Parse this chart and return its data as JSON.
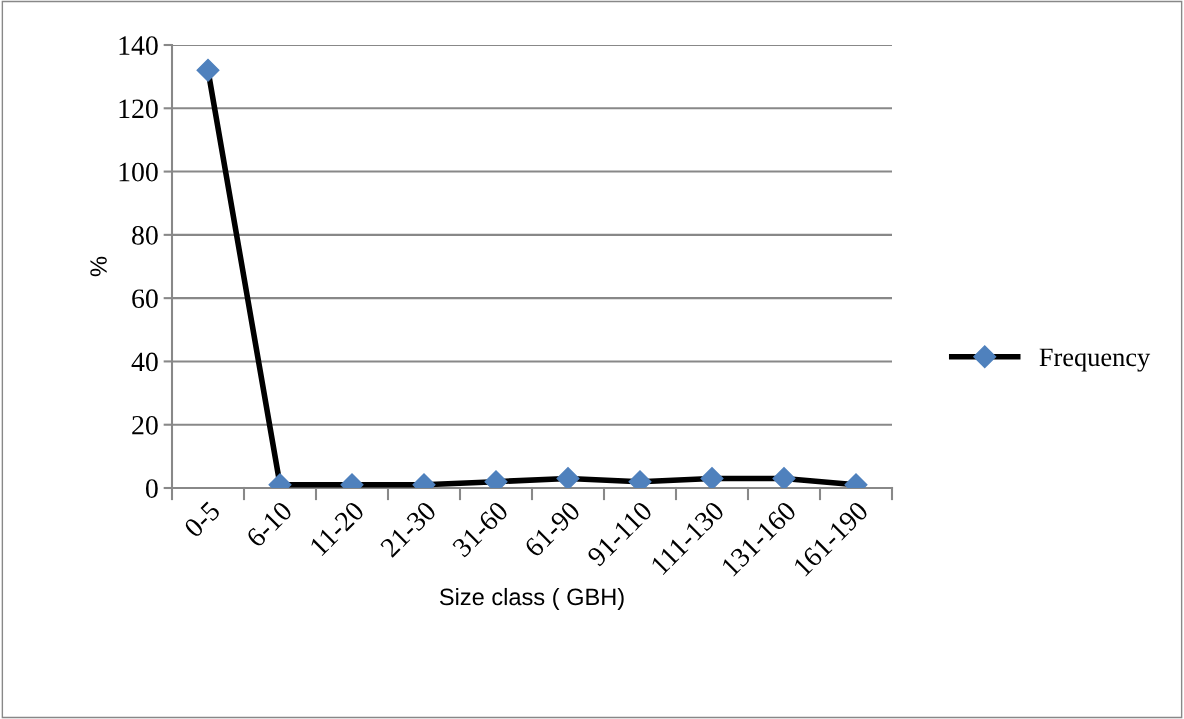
{
  "chart_data": {
    "type": "line",
    "xlabel": "Size class ( GBH)",
    "ylabel": "%",
    "categories": [
      "0-5",
      "6-10",
      "11-20",
      "21-30",
      "31-60",
      "61-90",
      "91-110",
      "111-130",
      "131-160",
      "161-190"
    ],
    "series": [
      {
        "name": "Frequency",
        "color": "#000000",
        "values": [
          132,
          1,
          1,
          1,
          2,
          3,
          2,
          3,
          3,
          1
        ]
      }
    ],
    "marker": "diamond",
    "ylim": [
      0,
      140
    ],
    "yticks": [
      0,
      20,
      40,
      60,
      80,
      100,
      120,
      140
    ],
    "grid": "y",
    "legend": "right"
  }
}
